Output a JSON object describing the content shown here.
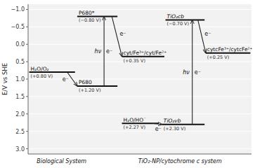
{
  "chart_data": {
    "type": "energy_levels",
    "ylabel": "E/V vs SHE",
    "ylim": [
      3.15,
      -1.15
    ],
    "yticks": [
      {
        "value": -1.0,
        "label": "−1.0"
      },
      {
        "value": -0.5,
        "label": "−0.5"
      },
      {
        "value": 0.0,
        "label": "0.0"
      },
      0.5,
      {
        "value": 1.0,
        "label": "1.0"
      },
      1.5,
      {
        "value": 2.0,
        "label": "2.0"
      },
      2.5,
      {
        "value": 3.0,
        "label": "3.0"
      }
    ],
    "grid": true,
    "tick_labels": "y",
    "categories": [
      "H₂O/O₂",
      "P680",
      "P680*",
      "cyt/Fe³⁺/cyt/Fe²⁺",
      "TiO₂​cb",
      "cytcFe³⁺/cytcFe²⁺",
      "H₂O/HO˙",
      "TiO₂​vb"
    ],
    "values": [
      0.8,
      1.2,
      -0.8,
      0.35,
      -0.7,
      0.25,
      2.27,
      2.3
    ],
    "value_labels": [
      "(+0.80 V)",
      "(+1.20 V)",
      "(−0.80 V)",
      "(+0.35 V)",
      "(−0.70 V)",
      "(+0.25 V)",
      "(+2.27 V)",
      "(+2.30 V)"
    ],
    "annotations": [
      "hν",
      "e⁻",
      "e⁻",
      "e⁻",
      "hν",
      "e⁻",
      "e⁻",
      "e⁻",
      "Biological System",
      "TiO₂-NP/cytochrome c system"
    ]
  }
}
